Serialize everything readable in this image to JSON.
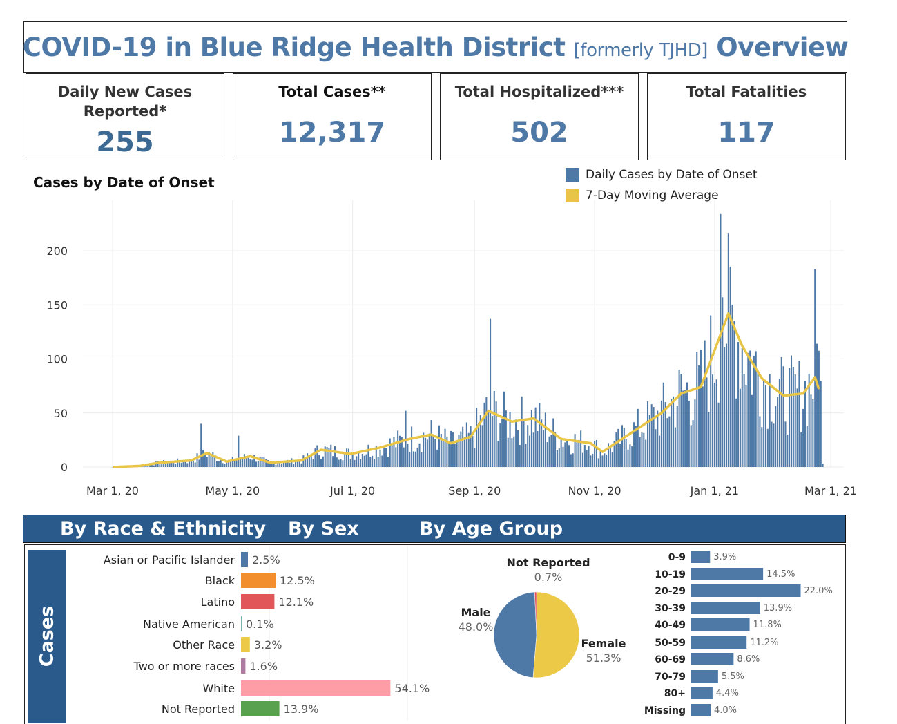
{
  "header": {
    "title_main": "COVID-19 in Blue Ridge Health District ",
    "title_small": "[formerly TJHD]",
    "title_end": " Overview"
  },
  "kpis": [
    {
      "label_line1": "Daily New Cases",
      "label_line2": "Reported*",
      "value": "255"
    },
    {
      "label_line1": "Total Cases**",
      "label_line2": "",
      "value": "12,317"
    },
    {
      "label_line1": "Total Hospitalized***",
      "label_line2": "",
      "value": "502"
    },
    {
      "label_line1": "Total Fatalities",
      "label_line2": "",
      "value": "117"
    }
  ],
  "colors": {
    "accent": "#4e79a7",
    "bar": "#4e79a7",
    "moving_avg": "#e8c547",
    "band": "#2a5a8c"
  },
  "main_chart": {
    "title": "Cases by Date of Onset",
    "legend": [
      {
        "label": "Daily Cases by Date of Onset",
        "color": "#4e79a7"
      },
      {
        "label": "7-Day Moving Average",
        "color": "#e8c547"
      }
    ]
  },
  "sections": {
    "race_label": "By Race & Ethnicity",
    "sex_label": "By Sex",
    "age_label": "By Age Group",
    "side_label": "Cases"
  },
  "chart_data": [
    {
      "type": "bar",
      "title": "Cases by Date of Onset",
      "x_ticks": [
        "Mar 1, 20",
        "May 1, 20",
        "Jul 1, 20",
        "Sep 1, 20",
        "Nov 1, 20",
        "Jan 1, 21",
        "Mar 1, 21"
      ],
      "y_ticks": [
        0,
        50,
        100,
        150,
        200
      ],
      "ylim": [
        0,
        245
      ],
      "grid": true,
      "legend_position": "top-right",
      "series": [
        {
          "name": "Daily Cases by Date of Onset",
          "x_start": "2020-03-01",
          "x_end": "2021-02-25",
          "daily_values_approx": "bars, daily, see monthly anchors",
          "peaks": [
            {
              "x": "2020-04-15",
              "y": 40
            },
            {
              "x": "2020-05-04",
              "y": 29
            },
            {
              "x": "2020-07-28",
              "y": 52
            },
            {
              "x": "2020-09-09",
              "y": 137
            },
            {
              "x": "2021-01-04",
              "y": 234
            },
            {
              "x": "2021-01-05",
              "y": 157
            },
            {
              "x": "2021-02-21",
              "y": 183
            },
            {
              "x": "2021-02-22",
              "y": 114
            }
          ]
        },
        {
          "name": "7-Day Moving Average",
          "points": [
            {
              "x": "2020-03-01",
              "y": 0
            },
            {
              "x": "2020-03-15",
              "y": 1
            },
            {
              "x": "2020-03-25",
              "y": 4
            },
            {
              "x": "2020-04-10",
              "y": 6
            },
            {
              "x": "2020-04-18",
              "y": 13
            },
            {
              "x": "2020-04-28",
              "y": 5
            },
            {
              "x": "2020-05-10",
              "y": 10
            },
            {
              "x": "2020-05-20",
              "y": 4
            },
            {
              "x": "2020-06-05",
              "y": 6
            },
            {
              "x": "2020-06-15",
              "y": 16
            },
            {
              "x": "2020-06-30",
              "y": 12
            },
            {
              "x": "2020-07-15",
              "y": 18
            },
            {
              "x": "2020-07-30",
              "y": 26
            },
            {
              "x": "2020-08-10",
              "y": 30
            },
            {
              "x": "2020-08-20",
              "y": 22
            },
            {
              "x": "2020-08-30",
              "y": 28
            },
            {
              "x": "2020-09-08",
              "y": 52
            },
            {
              "x": "2020-09-20",
              "y": 42
            },
            {
              "x": "2020-10-01",
              "y": 45
            },
            {
              "x": "2020-10-15",
              "y": 26
            },
            {
              "x": "2020-10-30",
              "y": 22
            },
            {
              "x": "2020-11-05",
              "y": 14
            },
            {
              "x": "2020-11-20",
              "y": 32
            },
            {
              "x": "2020-12-05",
              "y": 50
            },
            {
              "x": "2020-12-15",
              "y": 68
            },
            {
              "x": "2020-12-25",
              "y": 74
            },
            {
              "x": "2021-01-01",
              "y": 108
            },
            {
              "x": "2021-01-08",
              "y": 142
            },
            {
              "x": "2021-01-15",
              "y": 112
            },
            {
              "x": "2021-01-25",
              "y": 82
            },
            {
              "x": "2021-02-05",
              "y": 66
            },
            {
              "x": "2021-02-15",
              "y": 68
            },
            {
              "x": "2021-02-21",
              "y": 83
            },
            {
              "x": "2021-02-23",
              "y": 72
            }
          ]
        }
      ]
    },
    {
      "type": "bar",
      "title": "By Race & Ethnicity",
      "orientation": "horizontal",
      "categories": [
        "Asian or Pacific Islander",
        "Black",
        "Latino",
        "Native American",
        "Other Race",
        "Two or more races",
        "White",
        "Not Reported"
      ],
      "values": [
        2.5,
        12.5,
        12.1,
        0.1,
        3.2,
        1.6,
        54.1,
        13.9
      ],
      "labels": [
        "2.5%",
        "12.5%",
        "12.1%",
        "0.1%",
        "3.2%",
        "1.6%",
        "54.1%",
        "13.9%"
      ],
      "colors": [
        "#4e79a7",
        "#f28e2b",
        "#e15759",
        "#76b7b2",
        "#edc948",
        "#b07aa1",
        "#ff9da7",
        "#59a14f"
      ]
    },
    {
      "type": "pie",
      "title": "By Sex",
      "categories": [
        "Female",
        "Male",
        "Not Reported"
      ],
      "values": [
        51.3,
        48.0,
        0.7
      ],
      "labels": [
        "51.3%",
        "48.0%",
        "0.7%"
      ],
      "colors": [
        "#edc948",
        "#4e79a7",
        "#e15759"
      ]
    },
    {
      "type": "bar",
      "title": "By Age Group",
      "orientation": "horizontal",
      "categories": [
        "0-9",
        "10-19",
        "20-29",
        "30-39",
        "40-49",
        "50-59",
        "60-69",
        "70-79",
        "80+",
        "Missing"
      ],
      "values": [
        3.9,
        14.5,
        22.0,
        13.9,
        11.8,
        11.2,
        8.6,
        5.5,
        4.4,
        4.0
      ],
      "labels": [
        "3.9%",
        "14.5%",
        "22.0%",
        "13.9%",
        "11.8%",
        "11.2%",
        "8.6%",
        "5.5%",
        "4.4%",
        "4.0%"
      ],
      "color": "#4e79a7"
    }
  ]
}
